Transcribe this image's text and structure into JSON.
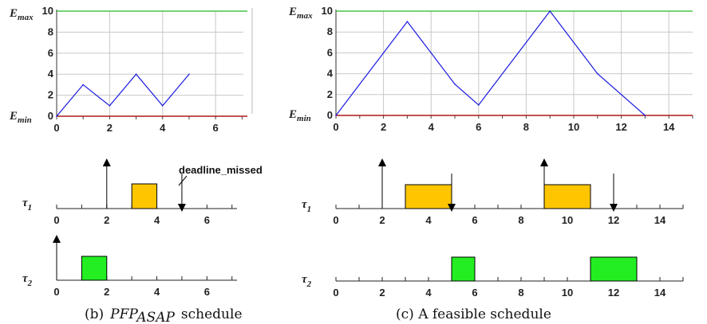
{
  "colors": {
    "emax_line": "#22bb22",
    "emin_line": "#b01818",
    "energy_line": "#1a1ae0",
    "grid": "#c8c8c8",
    "job_tau1": "#ffc600",
    "job_tau2": "#22ee22",
    "divider": "#bbbbbb"
  },
  "labels": {
    "emax_main": "E",
    "emax_sub": "max",
    "emin_main": "E",
    "emin_sub": "min",
    "tau": "τ",
    "tau1_sub": "1",
    "tau2_sub": "2",
    "deadline_missed": "deadline_missed"
  },
  "captions": {
    "left_prefix": "(b)",
    "left_math_main": "PFP",
    "left_math_sub": "ASAP",
    "left_suffix": "schedule",
    "right": "(c)  A feasible schedule"
  },
  "chart_data": [
    {
      "type": "line",
      "panel": "left-energy",
      "x": [
        0,
        1,
        2,
        3,
        4,
        5
      ],
      "y": [
        0,
        3,
        1,
        4,
        1,
        4
      ],
      "xlim": [
        0,
        7.2
      ],
      "ylim": [
        0,
        10
      ],
      "x_ticks": [
        0,
        2,
        4,
        6
      ],
      "y_ticks": [
        0,
        2,
        4,
        6,
        8,
        10
      ],
      "emax": 10,
      "emin": 0,
      "grid": true
    },
    {
      "type": "line",
      "panel": "right-energy",
      "x": [
        0,
        3,
        5,
        6,
        9,
        11,
        13
      ],
      "y": [
        0,
        9,
        3,
        1,
        10,
        4,
        0
      ],
      "xlim": [
        0,
        15
      ],
      "ylim": [
        0,
        10
      ],
      "x_ticks": [
        0,
        2,
        4,
        6,
        8,
        10,
        12,
        14
      ],
      "y_ticks": [
        0,
        2,
        4,
        6,
        8,
        10
      ],
      "emax": 10,
      "emin": 0,
      "grid": true
    },
    {
      "type": "gantt",
      "panel": "left-tau1",
      "task": "tau1",
      "xlim": [
        0,
        7.2
      ],
      "x_ticks": [
        0,
        2,
        4,
        6
      ],
      "jobs": [
        [
          3,
          4
        ]
      ],
      "releases": [
        2
      ],
      "deadlines": [
        5
      ],
      "missed_deadline": 5
    },
    {
      "type": "gantt",
      "panel": "left-tau2",
      "task": "tau2",
      "xlim": [
        0,
        7.2
      ],
      "x_ticks": [
        0,
        2,
        4,
        6
      ],
      "jobs": [
        [
          1,
          2
        ]
      ],
      "releases": [
        0
      ],
      "deadlines": []
    },
    {
      "type": "gantt",
      "panel": "right-tau1",
      "task": "tau1",
      "xlim": [
        0,
        15
      ],
      "x_ticks": [
        0,
        2,
        4,
        6,
        8,
        10,
        12,
        14
      ],
      "jobs": [
        [
          3,
          5
        ],
        [
          9,
          11
        ]
      ],
      "releases": [
        2,
        9
      ],
      "deadlines": [
        5,
        12
      ]
    },
    {
      "type": "gantt",
      "panel": "right-tau2",
      "task": "tau2",
      "xlim": [
        0,
        15
      ],
      "x_ticks": [
        0,
        2,
        4,
        6,
        8,
        10,
        12,
        14
      ],
      "jobs": [
        [
          5,
          6
        ],
        [
          11,
          13
        ]
      ],
      "releases": [],
      "deadlines": []
    }
  ]
}
